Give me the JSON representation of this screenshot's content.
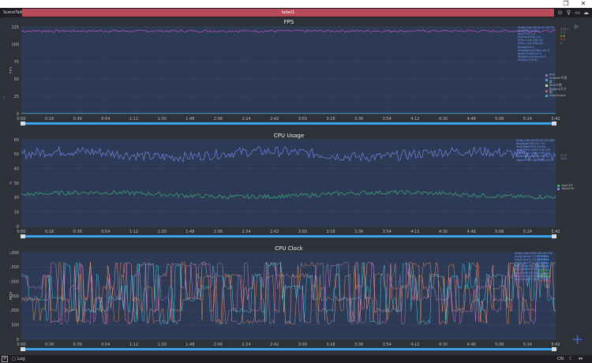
{
  "window": {
    "maximize": "❐",
    "close": "✕"
  },
  "toolbar": {
    "app_name": "SceneTalk",
    "label": "label1"
  },
  "toolbar_icons": [
    "pin-icon",
    "bulb-icon",
    "folder-icon",
    "cloud-icon"
  ],
  "charts": [
    {
      "title": "FPS",
      "ylabel": "FPS",
      "yticks": [
        "125",
        "100",
        "75",
        "50",
        "25",
        "0"
      ],
      "stats": "Stats Info:00:00-05:42.00\nAvg(FPS):118.4\nVar(FPS):1.4\nStd.Var(FPS):1.2\nFPS>=18:100.0%\nFPS>=25:100.0%\nSmooth:0.0\nSmallJank(/10min):0.0\nJank(/10min):0.0\nBigJank(/10min):0.0\nStutter:0.00%",
      "legend": [
        "FPS",
        "Smooth平滑度",
        "Jank卡顿",
        "BigJank大卡顿",
        "InterFrame"
      ],
      "side_values": [
        "119.1",
        "0.0",
        "0.0",
        "0.0",
        "0"
      ]
    },
    {
      "title": "CPU Usage",
      "ylabel": "%",
      "yticks": [
        "60",
        "50",
        "40",
        "30",
        "20",
        "10",
        "0"
      ],
      "stats": "Stats Info:00:00-05:42.000\nAvg(AppCPU):22.1%\nAvg(TotalCPU):50.3%\nAppCPU<=60%:100.0%\nAppCPU<=80%:100.0%\nTotalCPU<=50%:48.0%\nTotalCPU<=80%:100.0%",
      "legend": [
        "AppCPU",
        "TotalCPU"
      ],
      "side_values": [
        "21%",
        "48%"
      ]
    },
    {
      "title": "CPU Clock",
      "ylabel": "MHz",
      "yticks": [
        "3,000",
        "2,500",
        "2,000",
        "1,500",
        "1,000",
        "500",
        "0"
      ],
      "stats": "Stats Info:00:00-05:42.000\nAvg(Clock0):1277.0MHz\nAvg(Clock1):1276.9MHz\nAvg(Clock2):1277.0MHz\nAvg(Clock3):1277.0MHz\nAvg(Clock4):1540.4MHz\nAvg(Clock5):1540.3MHz\nAvg(Clock6):1540.4MHz\nAvg(Clock7):1814.7MHz",
      "legend": [
        "CPU0",
        "CPU1",
        "CPU2",
        "CPU3",
        "CPU4",
        "CPU5",
        "CPU6",
        "CPU7"
      ],
      "side_values": [
        "300MHz",
        "300MHz",
        "300MHz",
        "300MHz",
        "1800MHz",
        "1800MHz",
        "1800MHz",
        "1900MHz"
      ]
    }
  ],
  "xticks": [
    "0:00",
    "0:18",
    "0:36",
    "0:54",
    "1:12",
    "1:30",
    "1:48",
    "2:06",
    "2:24",
    "2:42",
    "3:00",
    "3:18",
    "3:36",
    "3:54",
    "4:12",
    "4:30",
    "4:48",
    "5:06",
    "5:24",
    "5:42"
  ],
  "chart_data": [
    {
      "type": "line",
      "title": "FPS",
      "ylabel": "FPS",
      "ylim": [
        0,
        125
      ],
      "x_range": [
        "0:00",
        "5:42"
      ],
      "series": [
        {
          "name": "FPS",
          "color": "#c855c8",
          "approx_value": 119
        },
        {
          "name": "InterFrame",
          "color": "#4aa3c8",
          "approx_value": 0
        }
      ]
    },
    {
      "type": "line",
      "title": "CPU Usage",
      "ylabel": "%",
      "ylim": [
        0,
        60
      ],
      "x_range": [
        "0:00",
        "5:42"
      ],
      "series": [
        {
          "name": "TotalCPU",
          "color": "#6f86e8",
          "approx_mean": 50
        },
        {
          "name": "AppCPU",
          "color": "#3fae7a",
          "approx_mean": 22
        }
      ]
    },
    {
      "type": "line",
      "title": "CPU Clock",
      "ylabel": "MHz",
      "ylim": [
        0,
        3000
      ],
      "x_range": [
        "0:00",
        "5:42"
      ],
      "series": [
        {
          "name": "CPU0-3",
          "color": "#4ecbe0",
          "approx_mean": 1277
        },
        {
          "name": "CPU4-6",
          "color": "#e8a0a0",
          "approx_mean": 1540
        },
        {
          "name": "CPU7",
          "color": "#c879c8",
          "approx_mean": 1815
        }
      ]
    }
  ],
  "colors": {
    "fps": "#c855c8",
    "interframe": "#4aa3c8",
    "total_cpu": "#6f86e8",
    "app_cpu": "#3fae7a",
    "scroll": "#3aa0e8",
    "label_bar": "#b84a5a"
  },
  "bottom": {
    "log": "Log",
    "lang": "CN",
    "moon": "☾",
    "ver": "▾▾"
  }
}
